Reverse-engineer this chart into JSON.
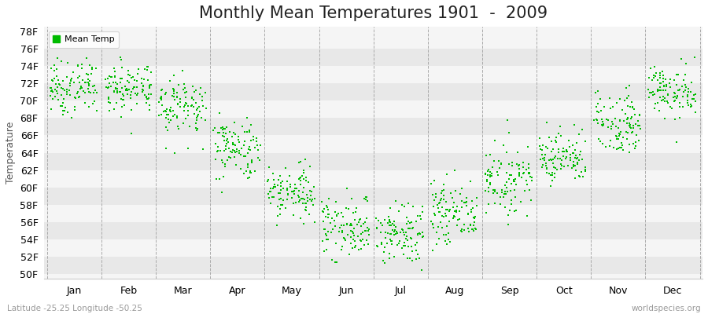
{
  "title": "Monthly Mean Temperatures 1901  -  2009",
  "ylabel": "Temperature",
  "month_labels": [
    "Jan",
    "Feb",
    "Mar",
    "Apr",
    "May",
    "Jun",
    "Jul",
    "Aug",
    "Sep",
    "Oct",
    "Nov",
    "Dec"
  ],
  "ytick_labels": [
    "50F",
    "52F",
    "54F",
    "56F",
    "58F",
    "60F",
    "62F",
    "64F",
    "66F",
    "68F",
    "70F",
    "72F",
    "74F",
    "76F",
    "78F"
  ],
  "ytick_values": [
    50,
    52,
    54,
    56,
    58,
    60,
    62,
    64,
    66,
    68,
    70,
    72,
    74,
    76,
    78
  ],
  "ylim": [
    49.5,
    78.5
  ],
  "xlim": [
    -0.05,
    12.05
  ],
  "marker_color": "#00bb00",
  "legend_label": "Mean Temp",
  "bg_color": "#f5f5f5",
  "stripe_light": "#f5f5f5",
  "stripe_dark": "#e8e8e8",
  "title_fontsize": 15,
  "axis_fontsize": 9,
  "footer_left": "Latitude -25.25 Longitude -50.25",
  "footer_right": "worldspecies.org",
  "month_means": [
    71.5,
    71.5,
    69.5,
    64.5,
    59.5,
    55.5,
    54.5,
    57.0,
    61.0,
    63.5,
    67.5,
    71.0
  ],
  "month_stds": [
    1.5,
    1.5,
    1.8,
    1.8,
    1.8,
    1.8,
    1.8,
    1.8,
    1.8,
    1.5,
    1.8,
    1.5
  ],
  "n_years": 109,
  "seed": 7
}
